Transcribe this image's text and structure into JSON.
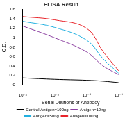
{
  "chart_data": {
    "type": "line",
    "title": "ELISA Result",
    "x_label": "Serial Dilutions of Antibody",
    "y_label": "O.D.",
    "log": "x",
    "x": [
      0.01,
      0.001,
      0.0001,
      3e-05,
      1e-05
    ],
    "xlim": [
      0.01,
      1e-05
    ],
    "xticks": [
      {
        "value": 0.01,
        "label": "10⁻²"
      },
      {
        "value": 0.001,
        "label": "10⁻³"
      },
      {
        "value": 0.0001,
        "label": "10⁻⁴"
      },
      {
        "value": 1e-05,
        "label": "10⁻⁵"
      }
    ],
    "ylim": [
      0,
      1.6
    ],
    "yticks": [
      0,
      0.2,
      0.4,
      0.6,
      0.8,
      1,
      1.2,
      1.4,
      1.6
    ],
    "grid": false,
    "legend": "bottom",
    "line_style": "solid",
    "series": [
      {
        "name": "Control Antigen=100ng",
        "color": "#000000",
        "values": [
          0.15,
          0.12,
          0.1,
          0.08,
          0.05
        ]
      },
      {
        "name": "Antigen=10ng",
        "color": "#8b3fa0",
        "values": [
          1.25,
          1.0,
          0.7,
          0.4,
          0.22
        ]
      },
      {
        "name": "Antigen=50ng",
        "color": "#22b0e0",
        "values": [
          1.35,
          1.22,
          0.95,
          0.55,
          0.25
        ]
      },
      {
        "name": "Antigen=100ng",
        "color": "#e8242a",
        "values": [
          1.45,
          1.38,
          1.2,
          0.7,
          0.3
        ]
      }
    ]
  }
}
